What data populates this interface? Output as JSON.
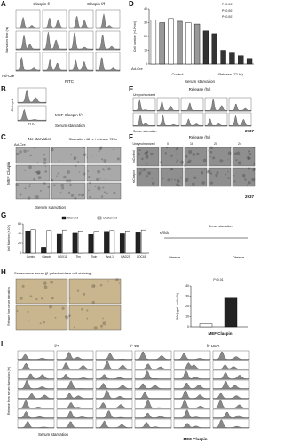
{
  "panels": {
    "A": {
      "label": "A",
      "col_titles": [
        "Claspin f/+",
        "Claspin f/f"
      ],
      "row_label": "Starvation time (hr)",
      "ad_cre": "Ad-Cre",
      "x_axis": "FITC"
    },
    "B": {
      "label": "B",
      "y_axis": "Cell cycle",
      "x_axis": "FITC",
      "caption": "MEF Claspin f/+",
      "bottom": "Serum starvation"
    },
    "C": {
      "label": "C",
      "col_titles": [
        "No starvation",
        "Starvation 48 hr / release 72 hr"
      ],
      "ad_cre": "Ad-Cre",
      "side": "MEF Claspin",
      "bottom": "Serum starvation"
    },
    "D": {
      "label": "D",
      "y_axis": "Cell number (×10⁴/ml)",
      "ylim": [
        0,
        40
      ],
      "yticks": [
        0,
        10,
        20,
        30,
        40
      ],
      "values": [
        32,
        30,
        33,
        31,
        30,
        29,
        24,
        22,
        10,
        8,
        6,
        4
      ],
      "colors": [
        "#ffffff",
        "#999999",
        "#ffffff",
        "#999999",
        "#ffffff",
        "#999999",
        "#333333",
        "#333333",
        "#333333",
        "#333333",
        "#333333",
        "#333333"
      ],
      "annotations": [
        "P<0.001",
        "P<0.001",
        "P<0.001"
      ],
      "groups": [
        "Control",
        "Release (72 hr)"
      ],
      "ad_cre": "Ad-Cre",
      "bottom": "Serum starvation"
    },
    "E": {
      "label": "E",
      "title": "Release (hr)",
      "first": "Unsynchronized",
      "cell": "2937",
      "bottom": "Serum starvation"
    },
    "F": {
      "label": "F",
      "title": "Release (hr)",
      "col_titles": [
        "Unsynchronized",
        "0",
        "16",
        "20",
        "24"
      ],
      "rows": [
        "siControl",
        "siClaspin"
      ],
      "cell": "2937"
    },
    "G": {
      "label": "G",
      "y_axis": "Cell Number (×10⁴)",
      "ylim": [
        0,
        60
      ],
      "yticks": [
        0,
        20,
        40,
        60
      ],
      "categories": [
        "Control",
        "Claspin",
        "DDX11",
        "Tim",
        "Tipin",
        "And-1",
        "RAD21",
        "CDC45"
      ],
      "series": [
        {
          "name": "Starved",
          "color": "#222222",
          "values": [
            45,
            12,
            40,
            42,
            38,
            44,
            41,
            43
          ]
        },
        {
          "name": "Unstarved",
          "color": "#ffffff",
          "values": [
            48,
            46,
            47,
            45,
            44,
            46,
            45,
            47
          ]
        }
      ],
      "schematic": [
        "siRNA",
        "Serum starvation",
        "Observe",
        "Observe"
      ]
    },
    "H": {
      "label": "H",
      "title": "Senescence assay (β-galactosidase cell staining)",
      "side": "Release from serum starvation",
      "y_axis": "SA-β-gal⁺ cells (%)",
      "ylim": [
        0,
        40
      ],
      "yticks": [
        0,
        10,
        20,
        30,
        40
      ],
      "values": [
        3,
        28
      ],
      "annotation": "P<0.01",
      "caption": "MEF Claspin"
    },
    "I": {
      "label": "I",
      "col_titles": [
        "f/+",
        "f/- WT",
        "f/- DEA"
      ],
      "side": "Release from serum starvation (hr)",
      "bottom": "Serum starvation",
      "caption": "MEF Claspin"
    }
  }
}
